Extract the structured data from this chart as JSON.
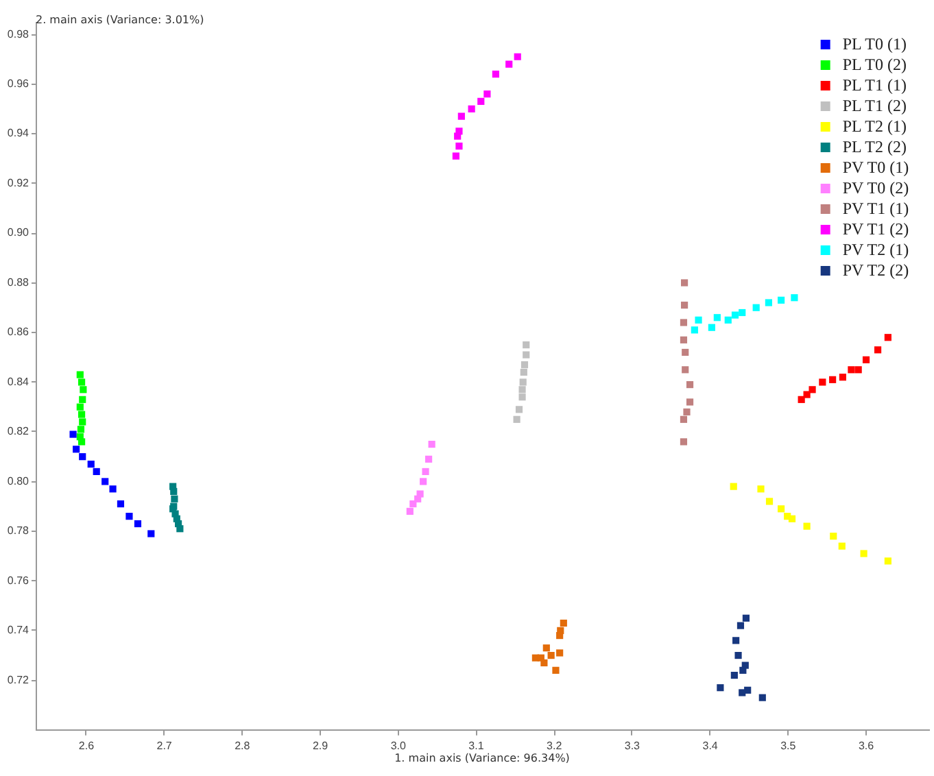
{
  "chart_data": {
    "type": "scatter",
    "xlabel": "1. main axis (Variance: 96.34%)",
    "ylabel": "2. main axis (Variance: 3.01%)",
    "xlim": [
      2.535,
      3.68
    ],
    "ylim": [
      0.7,
      0.985
    ],
    "xticks": [
      {
        "value": 2.6,
        "label": "2.6"
      },
      {
        "value": 2.7,
        "label": "2.7"
      },
      {
        "value": 2.8,
        "label": "2.8"
      },
      {
        "value": 2.9,
        "label": "2.9"
      },
      {
        "value": 3.0,
        "label": "3.0"
      },
      {
        "value": 3.1,
        "label": "3.1"
      },
      {
        "value": 3.2,
        "label": "3.2"
      },
      {
        "value": 3.3,
        "label": "3.3"
      },
      {
        "value": 3.4,
        "label": "3.4"
      },
      {
        "value": 3.5,
        "label": "3.5"
      },
      {
        "value": 3.6,
        "label": "3.6"
      }
    ],
    "yticks": [
      {
        "value": 0.72,
        "label": "0.72"
      },
      {
        "value": 0.74,
        "label": "0.74"
      },
      {
        "value": 0.76,
        "label": "0.76"
      },
      {
        "value": 0.78,
        "label": "0.78"
      },
      {
        "value": 0.8,
        "label": "0.80"
      },
      {
        "value": 0.82,
        "label": "0.82"
      },
      {
        "value": 0.84,
        "label": "0.84"
      },
      {
        "value": 0.86,
        "label": "0.86"
      },
      {
        "value": 0.88,
        "label": "0.88"
      },
      {
        "value": 0.9,
        "label": "0.90"
      },
      {
        "value": 0.92,
        "label": "0.92"
      },
      {
        "value": 0.94,
        "label": "0.94"
      },
      {
        "value": 0.96,
        "label": "0.96"
      },
      {
        "value": 0.98,
        "label": "0.98"
      }
    ],
    "grid": false,
    "legend": "top right",
    "marker": "square",
    "series": [
      {
        "name": "PL T0 (1)",
        "color": "#0000ff",
        "x": [
          2.583,
          2.587,
          2.595,
          2.606,
          2.613,
          2.624,
          2.634,
          2.644,
          2.655,
          2.666,
          2.683
        ],
        "values": [
          0.819,
          0.813,
          0.81,
          0.807,
          0.804,
          0.8,
          0.797,
          0.791,
          0.786,
          0.783,
          0.779
        ]
      },
      {
        "name": "PL T0 (2)",
        "color": "#00ff00",
        "x": [
          2.592,
          2.594,
          2.596,
          2.595,
          2.592,
          2.594,
          2.595,
          2.593,
          2.592,
          2.594
        ],
        "values": [
          0.843,
          0.84,
          0.837,
          0.833,
          0.83,
          0.827,
          0.824,
          0.821,
          0.818,
          0.816
        ]
      },
      {
        "name": "PL T1 (1)",
        "color": "#ff0000",
        "x": [
          3.628,
          3.615,
          3.6,
          3.59,
          3.581,
          3.57,
          3.557,
          3.544,
          3.531,
          3.524,
          3.517
        ],
        "values": [
          0.858,
          0.853,
          0.849,
          0.845,
          0.845,
          0.842,
          0.841,
          0.84,
          0.837,
          0.835,
          0.833
        ]
      },
      {
        "name": "PL T1 (2)",
        "color": "#c0c0c0",
        "x": [
          3.164,
          3.164,
          3.162,
          3.161,
          3.16,
          3.159,
          3.159,
          3.155,
          3.152
        ],
        "values": [
          0.855,
          0.851,
          0.847,
          0.844,
          0.84,
          0.837,
          0.834,
          0.829,
          0.825
        ]
      },
      {
        "name": "PL T2 (1)",
        "color": "#ffff00",
        "x": [
          3.43,
          3.465,
          3.476,
          3.491,
          3.499,
          3.505,
          3.524,
          3.558,
          3.569,
          3.597,
          3.628
        ],
        "values": [
          0.798,
          0.797,
          0.792,
          0.789,
          0.786,
          0.785,
          0.782,
          0.778,
          0.774,
          0.771,
          0.768
        ]
      },
      {
        "name": "PL T2 (2)",
        "color": "#008080",
        "x": [
          2.711,
          2.712,
          2.713,
          2.712,
          2.711,
          2.714,
          2.716,
          2.718,
          2.72
        ],
        "values": [
          0.798,
          0.796,
          0.793,
          0.79,
          0.789,
          0.787,
          0.785,
          0.783,
          0.781
        ]
      },
      {
        "name": "PV T0 (1)",
        "color": "#e36c0a",
        "x": [
          3.212,
          3.208,
          3.207,
          3.19,
          3.207,
          3.196,
          3.176,
          3.183,
          3.187,
          3.202
        ],
        "values": [
          0.743,
          0.74,
          0.738,
          0.733,
          0.731,
          0.73,
          0.729,
          0.729,
          0.727,
          0.724
        ]
      },
      {
        "name": "PV T0 (2)",
        "color": "#ff80ff",
        "x": [
          3.043,
          3.039,
          3.035,
          3.032,
          3.028,
          3.025,
          3.019,
          3.015
        ],
        "values": [
          0.815,
          0.809,
          0.804,
          0.8,
          0.795,
          0.793,
          0.791,
          0.788
        ]
      },
      {
        "name": "PV T1 (1)",
        "color": "#c0807f",
        "x": [
          3.367,
          3.367,
          3.366,
          3.366,
          3.368,
          3.368,
          3.374,
          3.374,
          3.37,
          3.366,
          3.366
        ],
        "values": [
          0.88,
          0.871,
          0.864,
          0.857,
          0.852,
          0.845,
          0.839,
          0.832,
          0.828,
          0.825,
          0.816
        ]
      },
      {
        "name": "PV T1 (2)",
        "color": "#ff00ff",
        "x": [
          3.074,
          3.078,
          3.076,
          3.078,
          3.081,
          3.094,
          3.106,
          3.114,
          3.125,
          3.142,
          3.153
        ],
        "values": [
          0.931,
          0.935,
          0.939,
          0.941,
          0.947,
          0.95,
          0.953,
          0.956,
          0.964,
          0.968,
          0.971
        ]
      },
      {
        "name": "PV T2 (1)",
        "color": "#00ffff",
        "x": [
          3.38,
          3.385,
          3.402,
          3.409,
          3.423,
          3.432,
          3.441,
          3.459,
          3.475,
          3.491,
          3.508
        ],
        "values": [
          0.861,
          0.865,
          0.862,
          0.866,
          0.865,
          0.867,
          0.868,
          0.87,
          0.872,
          0.873,
          0.874
        ]
      },
      {
        "name": "PV T2 (2)",
        "color": "#17377f",
        "x": [
          3.446,
          3.439,
          3.433,
          3.436,
          3.445,
          3.442,
          3.431,
          3.413,
          3.448,
          3.441,
          3.467
        ],
        "values": [
          0.745,
          0.742,
          0.736,
          0.73,
          0.726,
          0.724,
          0.722,
          0.717,
          0.716,
          0.715,
          0.713
        ]
      }
    ]
  }
}
